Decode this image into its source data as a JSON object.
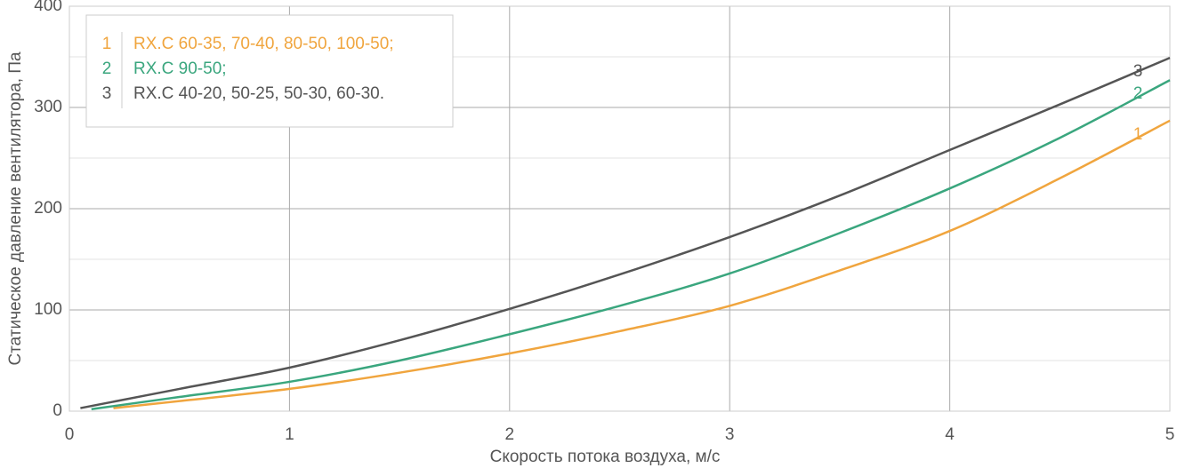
{
  "chart_data": {
    "type": "line",
    "xlabel": "Скорость потока воздуха, м/с",
    "ylabel": "Статическое давление вентилятора, Па",
    "xlim": [
      0,
      5
    ],
    "xticks": [
      0,
      1,
      2,
      3,
      4,
      5
    ],
    "ylim": [
      0,
      400
    ],
    "yticks": [
      0,
      100,
      200,
      300,
      400
    ],
    "yminor": [
      50,
      150,
      250,
      350
    ],
    "grid": true,
    "legend": "upper left",
    "series": [
      {
        "label": "1",
        "name": "RX.C 60-35, 70-40, 80-50, 100-50;",
        "color": "#f0a53e",
        "x": [
          0.2,
          0.5,
          1,
          1.5,
          2,
          2.5,
          3,
          3.5,
          4,
          4.5,
          5
        ],
        "values": [
          3,
          10,
          22,
          38,
          57,
          79,
          104,
          139,
          178,
          230,
          287
        ]
      },
      {
        "label": "2",
        "name": "RX.C 90-50;",
        "color": "#3aa67e",
        "x": [
          0.1,
          0.5,
          1,
          1.5,
          2,
          2.5,
          3,
          3.5,
          4,
          4.5,
          5
        ],
        "values": [
          2,
          14,
          29,
          50,
          76,
          104,
          136,
          176,
          220,
          270,
          327
        ]
      },
      {
        "label": "3",
        "name": "RX.C 40-20, 50-25, 50-30, 60-30.",
        "color": "#555555",
        "x": [
          0.05,
          0.5,
          1,
          1.5,
          2,
          2.5,
          3,
          3.5,
          4,
          4.5,
          5
        ],
        "values": [
          3,
          22,
          43,
          70,
          101,
          135,
          172,
          213,
          258,
          303,
          349
        ]
      }
    ]
  }
}
